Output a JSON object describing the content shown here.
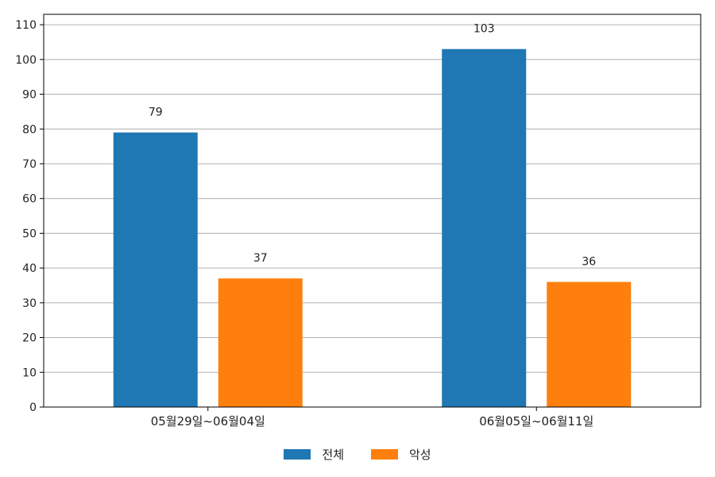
{
  "chart_data": {
    "type": "bar",
    "categories": [
      "05월29일~06월04일",
      "06월05일~06월11일"
    ],
    "series": [
      {
        "name": "전체",
        "values": [
          79,
          103
        ],
        "color": "#1f77b4"
      },
      {
        "name": "악성",
        "values": [
          37,
          36
        ],
        "color": "#ff7f0e"
      }
    ],
    "ylim": [
      0,
      113
    ],
    "yticks": [
      0,
      10,
      20,
      30,
      40,
      50,
      60,
      70,
      80,
      90,
      100,
      110
    ],
    "grid": "horizontal",
    "data_labels": true,
    "legend_position": "bottom-center"
  }
}
